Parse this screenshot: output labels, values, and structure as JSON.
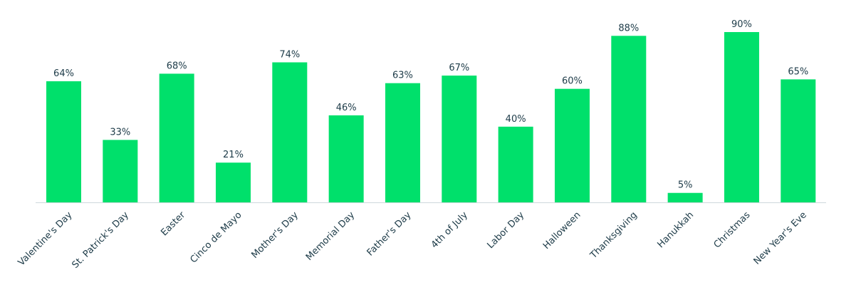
{
  "chart_data": {
    "type": "bar",
    "categories": [
      "Valentine's Day",
      "St. Patrick's Day",
      "Easter",
      "Cinco de Mayo",
      "Mother's Day",
      "Memorial Day",
      "Father's Day",
      "4th of July",
      "Labor Day",
      "Halloween",
      "Thanksgiving",
      "Hanukkah",
      "Christmas",
      "New Year's Eve"
    ],
    "values": [
      64,
      33,
      68,
      21,
      74,
      46,
      63,
      67,
      40,
      60,
      88,
      5,
      90,
      65
    ],
    "value_labels": [
      "64%",
      "33%",
      "68%",
      "21%",
      "74%",
      "46%",
      "63%",
      "67%",
      "40%",
      "60%",
      "88%",
      "5%",
      "90%",
      "65%"
    ],
    "color": "#00e06b"
  }
}
